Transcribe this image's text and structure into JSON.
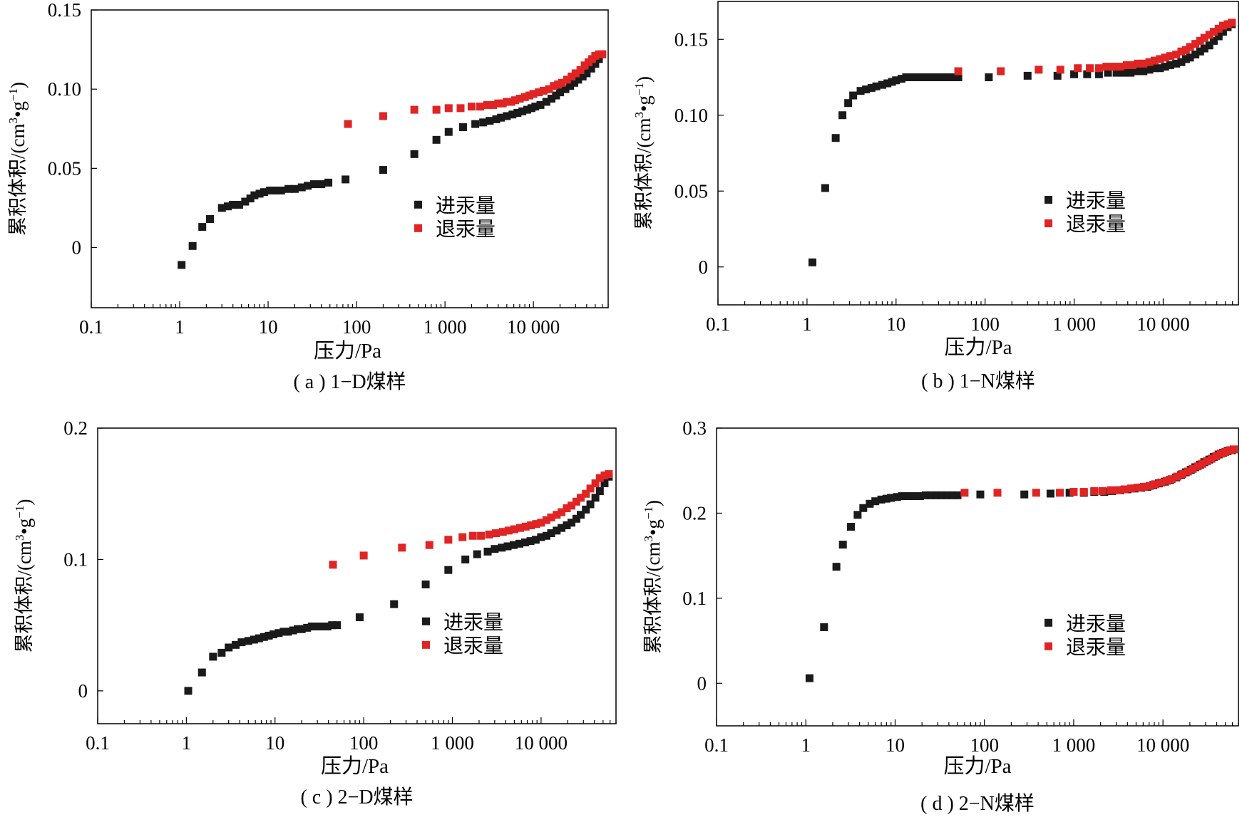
{
  "colors": {
    "intrusion": "#1a1a1a",
    "extrusion": "#e02424"
  },
  "chart_data": [
    {
      "type": "scatter",
      "caption": "( a ) 1−D煤样",
      "xlabel": "压力/Pa",
      "ylabel_main": "累积体积/(cm",
      "ylabel_sup1": "3",
      "ylabel_mid": "•g",
      "ylabel_sup2": "−1",
      "ylabel_end": ")",
      "xscale": "log",
      "xlim": [
        0.1,
        70000
      ],
      "ylim": [
        -0.038,
        0.15
      ],
      "xticks": [
        0.1,
        1,
        10,
        100,
        1000,
        10000
      ],
      "xtick_labels": [
        "0.1",
        "1",
        "10",
        "100",
        "1 000",
        "10 000"
      ],
      "yticks": [
        0,
        0.05,
        0.1,
        0.15
      ],
      "ytick_labels": [
        "0",
        "0.05",
        "0.10",
        "0.15"
      ],
      "legend_position": "center-right",
      "series": [
        {
          "name": "进汞量",
          "color": "#1a1a1a",
          "x": [
            1.05,
            1.4,
            1.8,
            2.2,
            3.0,
            3.5,
            4.0,
            4.7,
            5.5,
            6.3,
            7.0,
            8.0,
            9.0,
            10.5,
            12,
            14,
            17,
            20,
            24,
            28,
            33,
            40,
            48,
            75,
            200,
            450,
            800,
            1100,
            1600,
            2200,
            2700,
            3200,
            3800,
            4300,
            5000,
            5800,
            6600,
            7500,
            8500,
            9500,
            10500,
            12000,
            14000,
            16000,
            18000,
            20000,
            23000,
            26000,
            29000,
            32000,
            36000,
            40000,
            45000,
            50000,
            55000,
            60000
          ],
          "y": [
            -0.011,
            0.001,
            0.013,
            0.018,
            0.025,
            0.026,
            0.027,
            0.027,
            0.029,
            0.031,
            0.033,
            0.034,
            0.035,
            0.036,
            0.036,
            0.036,
            0.037,
            0.037,
            0.038,
            0.039,
            0.04,
            0.04,
            0.041,
            0.043,
            0.049,
            0.059,
            0.068,
            0.073,
            0.076,
            0.078,
            0.079,
            0.08,
            0.081,
            0.082,
            0.083,
            0.084,
            0.085,
            0.086,
            0.087,
            0.088,
            0.089,
            0.09,
            0.092,
            0.094,
            0.096,
            0.098,
            0.1,
            0.102,
            0.104,
            0.106,
            0.108,
            0.11,
            0.113,
            0.116,
            0.119,
            0.122
          ]
        },
        {
          "name": "退汞量",
          "color": "#e02424",
          "x": [
            80,
            200,
            450,
            800,
            1100,
            1500,
            2000,
            2500,
            3000,
            3500,
            4000,
            4500,
            5000,
            5600,
            6200,
            7000,
            8000,
            9000,
            10000,
            11500,
            13000,
            15000,
            17000,
            19000,
            21000,
            24000,
            27000,
            30000,
            34000,
            38000,
            42000,
            46000,
            50000,
            55000,
            60000
          ],
          "y": [
            0.078,
            0.083,
            0.087,
            0.087,
            0.088,
            0.088,
            0.089,
            0.089,
            0.09,
            0.09,
            0.091,
            0.091,
            0.092,
            0.092,
            0.093,
            0.094,
            0.095,
            0.096,
            0.097,
            0.098,
            0.099,
            0.1,
            0.102,
            0.103,
            0.104,
            0.106,
            0.108,
            0.11,
            0.112,
            0.115,
            0.117,
            0.119,
            0.121,
            0.122,
            0.122
          ]
        }
      ]
    },
    {
      "type": "scatter",
      "caption": "( b ) 1−N煤样",
      "xlabel": "压力/Pa",
      "ylabel_main": "累积体积/(cm",
      "ylabel_sup1": "3",
      "ylabel_mid": "•g",
      "ylabel_sup2": "−1",
      "ylabel_end": ")",
      "xscale": "log",
      "xlim": [
        0.1,
        70000
      ],
      "ylim": [
        -0.025,
        0.175
      ],
      "xticks": [
        0.1,
        1,
        10,
        100,
        1000,
        10000
      ],
      "xtick_labels": [
        "0.1",
        "1",
        "10",
        "100",
        "1 000",
        "10 000"
      ],
      "yticks": [
        0,
        0.05,
        0.1,
        0.15
      ],
      "ytick_labels": [
        "0",
        "0.05",
        "0.10",
        "0.15"
      ],
      "legend_position": "center-right",
      "series": [
        {
          "name": "进汞量",
          "color": "#1a1a1a",
          "x": [
            1.15,
            1.6,
            2.1,
            2.5,
            2.9,
            3.3,
            4.0,
            4.6,
            5.3,
            6.0,
            7.0,
            8.0,
            9.0,
            10,
            11.5,
            13,
            15,
            17,
            20,
            23,
            27,
            31,
            36,
            42,
            50,
            110,
            300,
            650,
            1000,
            1400,
            1900,
            2400,
            3000,
            3600,
            4300,
            5000,
            6000,
            7000,
            8000,
            9200,
            10500,
            12000,
            14000,
            16000,
            18000,
            20000,
            23000,
            26000,
            29000,
            33000,
            37000,
            42000,
            47000,
            53000,
            59000
          ],
          "y": [
            0.003,
            0.052,
            0.085,
            0.1,
            0.108,
            0.113,
            0.116,
            0.117,
            0.118,
            0.119,
            0.12,
            0.121,
            0.122,
            0.123,
            0.124,
            0.125,
            0.125,
            0.125,
            0.125,
            0.125,
            0.125,
            0.125,
            0.125,
            0.125,
            0.125,
            0.125,
            0.126,
            0.126,
            0.127,
            0.127,
            0.127,
            0.128,
            0.128,
            0.128,
            0.128,
            0.129,
            0.129,
            0.13,
            0.131,
            0.131,
            0.132,
            0.133,
            0.134,
            0.135,
            0.137,
            0.138,
            0.14,
            0.142,
            0.144,
            0.146,
            0.149,
            0.152,
            0.155,
            0.158,
            0.16
          ]
        },
        {
          "name": "退汞量",
          "color": "#e02424",
          "x": [
            50,
            150,
            400,
            700,
            1100,
            1500,
            1900,
            2300,
            2800,
            3300,
            3900,
            4500,
            5200,
            6000,
            7000,
            8000,
            9200,
            10500,
            12000,
            14000,
            16000,
            18000,
            20000,
            23000,
            26000,
            29000,
            33000,
            37000,
            42000,
            47000,
            53000,
            59000
          ],
          "y": [
            0.129,
            0.129,
            0.13,
            0.13,
            0.131,
            0.131,
            0.131,
            0.132,
            0.132,
            0.132,
            0.133,
            0.133,
            0.134,
            0.134,
            0.135,
            0.136,
            0.137,
            0.138,
            0.139,
            0.14,
            0.142,
            0.143,
            0.145,
            0.147,
            0.149,
            0.151,
            0.153,
            0.155,
            0.157,
            0.159,
            0.16,
            0.161
          ]
        }
      ]
    },
    {
      "type": "scatter",
      "caption": "( c ) 2−D煤样",
      "xlabel": "压力/Pa",
      "ylabel_main": "累积体积/(cm",
      "ylabel_sup1": "3",
      "ylabel_mid": "•g",
      "ylabel_sup2": "−1",
      "ylabel_end": ")",
      "xscale": "log",
      "xlim": [
        0.1,
        70000
      ],
      "ylim": [
        -0.025,
        0.2
      ],
      "xticks": [
        0.1,
        1,
        10,
        100,
        1000,
        10000
      ],
      "xtick_labels": [
        "0.1",
        "1",
        "10",
        "100",
        "1 000",
        "10 000"
      ],
      "yticks": [
        0,
        0.1,
        0.2
      ],
      "ytick_labels": [
        "0",
        "0.1",
        "0.2"
      ],
      "legend_position": "center-right",
      "series": [
        {
          "name": "进汞量",
          "color": "#1a1a1a",
          "x": [
            1.05,
            1.5,
            2.0,
            2.5,
            3.0,
            3.6,
            4.2,
            5.0,
            5.8,
            6.6,
            7.5,
            8.5,
            9.6,
            11,
            12.5,
            14,
            16,
            18,
            20,
            23,
            26,
            30,
            34,
            39,
            44,
            50,
            90,
            220,
            500,
            900,
            1400,
            1900,
            2500,
            3000,
            3600,
            4200,
            4900,
            5700,
            6600,
            7600,
            8700,
            10000,
            11500,
            13000,
            15000,
            17000,
            19500,
            22000,
            25000,
            28000,
            32000,
            36000,
            41000,
            46000,
            52000,
            58000
          ],
          "y": [
            0.0,
            0.014,
            0.026,
            0.029,
            0.033,
            0.035,
            0.037,
            0.038,
            0.039,
            0.04,
            0.041,
            0.042,
            0.043,
            0.044,
            0.045,
            0.045,
            0.046,
            0.047,
            0.047,
            0.048,
            0.049,
            0.049,
            0.049,
            0.049,
            0.05,
            0.05,
            0.056,
            0.066,
            0.081,
            0.092,
            0.1,
            0.104,
            0.106,
            0.108,
            0.109,
            0.11,
            0.111,
            0.112,
            0.113,
            0.114,
            0.115,
            0.117,
            0.118,
            0.12,
            0.122,
            0.124,
            0.126,
            0.128,
            0.131,
            0.134,
            0.138,
            0.142,
            0.147,
            0.152,
            0.158,
            0.163
          ]
        },
        {
          "name": "退汞量",
          "color": "#e02424",
          "x": [
            45,
            100,
            270,
            550,
            900,
            1300,
            1700,
            2100,
            2600,
            3100,
            3700,
            4300,
            5000,
            5800,
            6700,
            7700,
            8800,
            10000,
            11500,
            13000,
            15000,
            17000,
            19500,
            22000,
            25000,
            28000,
            32000,
            36000,
            41000,
            46000,
            52000,
            58000
          ],
          "y": [
            0.096,
            0.103,
            0.109,
            0.111,
            0.115,
            0.117,
            0.118,
            0.118,
            0.119,
            0.12,
            0.121,
            0.122,
            0.123,
            0.124,
            0.125,
            0.126,
            0.127,
            0.128,
            0.13,
            0.132,
            0.134,
            0.136,
            0.139,
            0.141,
            0.144,
            0.147,
            0.15,
            0.154,
            0.158,
            0.162,
            0.164,
            0.165
          ]
        }
      ]
    },
    {
      "type": "scatter",
      "caption": "( d ) 2−N煤样",
      "xlabel": "压力/Pa",
      "ylabel_main": "累积体积/(cm",
      "ylabel_sup1": "3",
      "ylabel_mid": "•g",
      "ylabel_sup2": "−1",
      "ylabel_end": ")",
      "xscale": "log",
      "xlim": [
        0.1,
        70000
      ],
      "ylim": [
        -0.05,
        0.3
      ],
      "xticks": [
        0.1,
        1,
        10,
        100,
        1000,
        10000
      ],
      "xtick_labels": [
        "0.1",
        "1",
        "10",
        "100",
        "1 000",
        "10 000"
      ],
      "yticks": [
        0,
        0.1,
        0.2,
        0.3
      ],
      "ytick_labels": [
        "0",
        "0.1",
        "0.2",
        "0.3"
      ],
      "legend_position": "center-right",
      "series": [
        {
          "name": "进汞量",
          "color": "#1a1a1a",
          "x": [
            1.1,
            1.6,
            2.2,
            2.6,
            3.2,
            3.8,
            4.4,
            5.2,
            6.0,
            7.0,
            8.0,
            9.0,
            10.5,
            12,
            14,
            16,
            19,
            22,
            25,
            29,
            33,
            38,
            44,
            50,
            90,
            280,
            550,
            900,
            1300,
            1700,
            2200,
            2700,
            3300,
            4000,
            4800,
            5700,
            6700,
            7800,
            9000,
            10500,
            12000,
            14000,
            16000,
            18000,
            20500,
            23000,
            26000,
            29000,
            33000,
            37000,
            42000,
            47000,
            53000,
            59000
          ],
          "y": [
            0.006,
            0.066,
            0.137,
            0.163,
            0.184,
            0.198,
            0.206,
            0.211,
            0.214,
            0.216,
            0.217,
            0.218,
            0.219,
            0.22,
            0.22,
            0.22,
            0.22,
            0.221,
            0.221,
            0.221,
            0.221,
            0.221,
            0.221,
            0.221,
            0.222,
            0.222,
            0.223,
            0.224,
            0.224,
            0.225,
            0.225,
            0.226,
            0.227,
            0.228,
            0.229,
            0.23,
            0.231,
            0.233,
            0.235,
            0.237,
            0.239,
            0.242,
            0.245,
            0.248,
            0.251,
            0.254,
            0.257,
            0.26,
            0.263,
            0.266,
            0.269,
            0.271,
            0.273,
            0.274
          ]
        },
        {
          "name": "退汞量",
          "color": "#e02424",
          "x": [
            60,
            140,
            380,
            700,
            1000,
            1300,
            1700,
            2100,
            2600,
            3100,
            3700,
            4400,
            5200,
            6100,
            7100,
            8200,
            9500,
            11000,
            12500,
            14500,
            16500,
            19000,
            21500,
            24500,
            27500,
            31000,
            35000,
            39500,
            44500,
            50000,
            56000,
            62000
          ],
          "y": [
            0.224,
            0.224,
            0.224,
            0.224,
            0.225,
            0.225,
            0.226,
            0.226,
            0.227,
            0.227,
            0.228,
            0.229,
            0.23,
            0.231,
            0.232,
            0.234,
            0.236,
            0.238,
            0.24,
            0.243,
            0.246,
            0.249,
            0.252,
            0.255,
            0.258,
            0.261,
            0.264,
            0.267,
            0.27,
            0.272,
            0.274,
            0.275
          ]
        }
      ]
    }
  ]
}
